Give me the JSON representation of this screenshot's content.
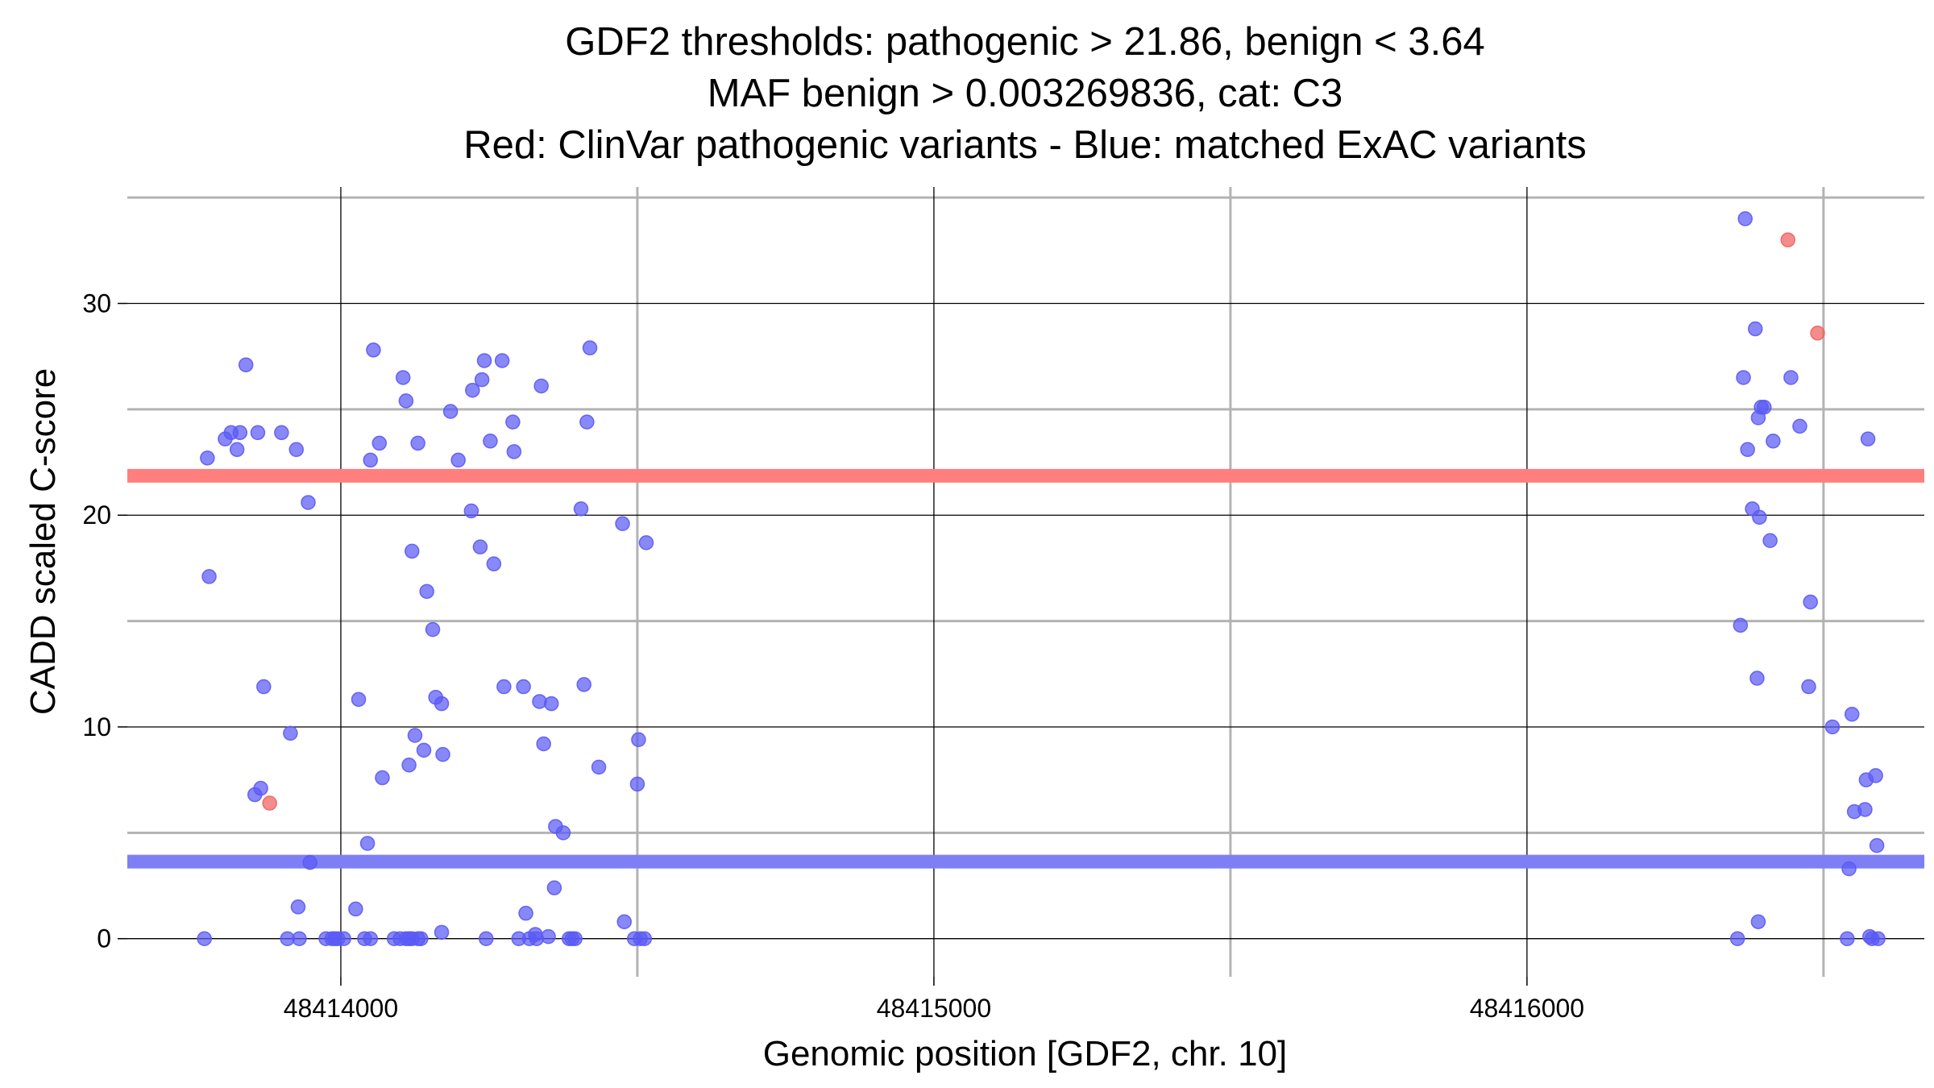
{
  "chart_data": {
    "type": "scatter",
    "title_lines": [
      "GDF2 thresholds: pathogenic > 21.86, benign < 3.64",
      "MAF benign > 0.003269836, cat: C3",
      "Red: ClinVar pathogenic variants - Blue: matched ExAC variants"
    ],
    "xlabel": "Genomic position [GDF2, chr. 10]",
    "ylabel": "CADD scaled C-score",
    "xlim": [
      48413640,
      48416670
    ],
    "ylim": [
      -1.8,
      35.5
    ],
    "x_ticks": [
      48414000,
      48415000,
      48416000
    ],
    "x_tick_labels": [
      "48414000",
      "48415000",
      "48416000"
    ],
    "x_minor_grid": [
      48414500,
      48415500,
      48416500
    ],
    "y_ticks": [
      0,
      10,
      20,
      30
    ],
    "y_tick_labels": [
      "0",
      "10",
      "20",
      "30"
    ],
    "y_minor_grid": [
      5,
      15,
      25,
      35
    ],
    "thresholds": [
      {
        "name": "pathogenic",
        "value": 21.86,
        "color": "#ff7f7f"
      },
      {
        "name": "benign",
        "value": 3.64,
        "color": "#7f7ff5"
      }
    ],
    "colors": {
      "pathogenic": "#f06060",
      "benign": "#5a5af5"
    },
    "series": [
      {
        "name": "ClinVar pathogenic variants",
        "color": "#f06060",
        "points": [
          [
            48413880,
            6.4
          ],
          [
            48416440,
            33.0
          ],
          [
            48416490,
            28.6
          ]
        ]
      },
      {
        "name": "matched ExAC variants",
        "color": "#5a5af5",
        "points": [
          [
            48413770,
            0.0
          ],
          [
            48413775,
            22.7
          ],
          [
            48413778,
            17.1
          ],
          [
            48413805,
            23.6
          ],
          [
            48413815,
            23.9
          ],
          [
            48413825,
            23.1
          ],
          [
            48413830,
            23.9
          ],
          [
            48413840,
            27.1
          ],
          [
            48413855,
            6.8
          ],
          [
            48413860,
            23.9
          ],
          [
            48413865,
            7.1
          ],
          [
            48413870,
            11.9
          ],
          [
            48413900,
            23.9
          ],
          [
            48413910,
            0.0
          ],
          [
            48413915,
            9.7
          ],
          [
            48413925,
            23.1
          ],
          [
            48413930,
            0.0
          ],
          [
            48413928,
            1.5
          ],
          [
            48413945,
            20.6
          ],
          [
            48413948,
            3.6
          ],
          [
            48413975,
            0.0
          ],
          [
            48413985,
            0.0
          ],
          [
            48413990,
            0.0
          ],
          [
            48413995,
            0.0
          ],
          [
            48414005,
            0.0
          ],
          [
            48414040,
            0.0
          ],
          [
            48414050,
            0.0
          ],
          [
            48414070,
            7.6
          ],
          [
            48414090,
            0.0
          ],
          [
            48414100,
            0.0
          ],
          [
            48414110,
            0.0
          ],
          [
            48414115,
            0.0
          ],
          [
            48414120,
            0.0
          ],
          [
            48414130,
            0.0
          ],
          [
            48414025,
            1.4
          ],
          [
            48414030,
            11.3
          ],
          [
            48414045,
            4.5
          ],
          [
            48414050,
            22.6
          ],
          [
            48414055,
            27.8
          ],
          [
            48414065,
            23.4
          ],
          [
            48414105,
            26.5
          ],
          [
            48414110,
            25.4
          ],
          [
            48414115,
            8.2
          ],
          [
            48414120,
            18.3
          ],
          [
            48414125,
            9.6
          ],
          [
            48414130,
            23.4
          ],
          [
            48414135,
            0.0
          ],
          [
            48414140,
            8.9
          ],
          [
            48414145,
            16.4
          ],
          [
            48414155,
            14.6
          ],
          [
            48414160,
            11.4
          ],
          [
            48414170,
            11.1
          ],
          [
            48414170,
            0.3
          ],
          [
            48414172,
            8.7
          ],
          [
            48414185,
            24.9
          ],
          [
            48414198,
            22.6
          ],
          [
            48414220,
            20.2
          ],
          [
            48414222,
            25.9
          ],
          [
            48414235,
            18.5
          ],
          [
            48414238,
            26.4
          ],
          [
            48414242,
            27.3
          ],
          [
            48414245,
            0.0
          ],
          [
            48414252,
            23.5
          ],
          [
            48414258,
            17.7
          ],
          [
            48414272,
            27.3
          ],
          [
            48414275,
            11.9
          ],
          [
            48414290,
            24.4
          ],
          [
            48414292,
            23.0
          ],
          [
            48414300,
            0.0
          ],
          [
            48414308,
            11.9
          ],
          [
            48414312,
            1.2
          ],
          [
            48414318,
            0.0
          ],
          [
            48414328,
            0.2
          ],
          [
            48414330,
            0.0
          ],
          [
            48414335,
            11.2
          ],
          [
            48414338,
            26.1
          ],
          [
            48414342,
            9.2
          ],
          [
            48414350,
            0.1
          ],
          [
            48414355,
            11.1
          ],
          [
            48414360,
            2.4
          ],
          [
            48414362,
            5.3
          ],
          [
            48414375,
            5.0
          ],
          [
            48414385,
            0.0
          ],
          [
            48414390,
            0.0
          ],
          [
            48414395,
            0.0
          ],
          [
            48414405,
            20.3
          ],
          [
            48414410,
            12.0
          ],
          [
            48414415,
            24.4
          ],
          [
            48414420,
            27.9
          ],
          [
            48414435,
            8.1
          ],
          [
            48414475,
            19.6
          ],
          [
            48414478,
            0.8
          ],
          [
            48414495,
            0.0
          ],
          [
            48414500,
            7.3
          ],
          [
            48414502,
            9.4
          ],
          [
            48414505,
            0.0
          ],
          [
            48414512,
            0.0
          ],
          [
            48414515,
            18.7
          ],
          [
            48416355,
            0.0
          ],
          [
            48416360,
            14.8
          ],
          [
            48416365,
            26.5
          ],
          [
            48416368,
            34.0
          ],
          [
            48416372,
            23.1
          ],
          [
            48416380,
            20.3
          ],
          [
            48416385,
            28.8
          ],
          [
            48416388,
            12.3
          ],
          [
            48416390,
            24.6
          ],
          [
            48416390,
            0.8
          ],
          [
            48416395,
            25.1
          ],
          [
            48416392,
            19.9
          ],
          [
            48416400,
            25.1
          ],
          [
            48416410,
            18.8
          ],
          [
            48416415,
            23.5
          ],
          [
            48416445,
            26.5
          ],
          [
            48416460,
            24.2
          ],
          [
            48416475,
            11.9
          ],
          [
            48416478,
            15.9
          ],
          [
            48416515,
            10.0
          ],
          [
            48416540,
            0.0
          ],
          [
            48416543,
            3.3
          ],
          [
            48416548,
            10.6
          ],
          [
            48416552,
            6.0
          ],
          [
            48416570,
            6.1
          ],
          [
            48416572,
            7.5
          ],
          [
            48416575,
            23.6
          ],
          [
            48416578,
            0.1
          ],
          [
            48416582,
            0.0
          ],
          [
            48416588,
            7.7
          ],
          [
            48416590,
            4.4
          ],
          [
            48416592,
            0.0
          ]
        ]
      }
    ]
  }
}
